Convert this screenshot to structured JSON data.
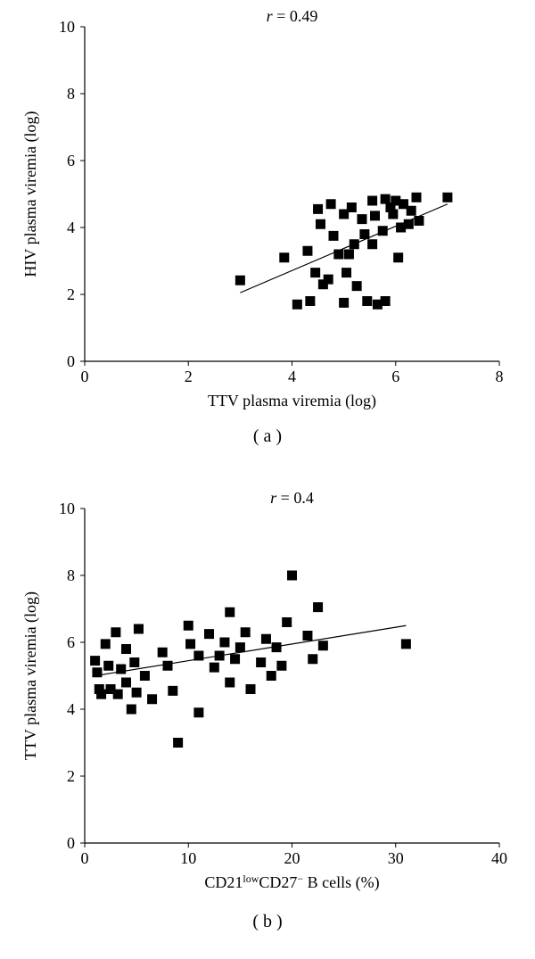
{
  "panelA": {
    "type": "scatter",
    "title_r": "r = 0.49",
    "xlabel": "TTV plasma viremia (log)",
    "ylabel": "HIV plasma viremia (log)",
    "panel_label": "( a )",
    "xlim": [
      0,
      8
    ],
    "ylim": [
      0,
      10
    ],
    "xtick_step": 2,
    "ytick_step": 2,
    "xticks": [
      0,
      2,
      4,
      6,
      8
    ],
    "yticks": [
      0,
      2,
      4,
      6,
      8,
      10
    ],
    "marker": "square",
    "marker_size": 11,
    "marker_color": "#000000",
    "line_color": "#000000",
    "line_width": 1.2,
    "background_color": "#ffffff",
    "axis_color": "#000000",
    "tick_len": 5,
    "tick_direction": "out",
    "fit_line": {
      "x1": 3.0,
      "y1": 2.05,
      "x2": 7.0,
      "y2": 4.7
    },
    "title_fontsize": 18,
    "label_fontsize": 18,
    "tick_fontsize": 18,
    "points": [
      {
        "x": 3.0,
        "y": 2.42
      },
      {
        "x": 3.85,
        "y": 3.1
      },
      {
        "x": 4.1,
        "y": 1.7
      },
      {
        "x": 4.3,
        "y": 3.3
      },
      {
        "x": 4.35,
        "y": 1.8
      },
      {
        "x": 4.45,
        "y": 2.65
      },
      {
        "x": 4.5,
        "y": 4.55
      },
      {
        "x": 4.55,
        "y": 4.1
      },
      {
        "x": 4.6,
        "y": 2.3
      },
      {
        "x": 4.7,
        "y": 2.45
      },
      {
        "x": 4.75,
        "y": 4.7
      },
      {
        "x": 4.8,
        "y": 3.75
      },
      {
        "x": 4.9,
        "y": 3.2
      },
      {
        "x": 5.0,
        "y": 1.75
      },
      {
        "x": 5.0,
        "y": 4.4
      },
      {
        "x": 5.05,
        "y": 2.65
      },
      {
        "x": 5.1,
        "y": 3.2
      },
      {
        "x": 5.15,
        "y": 4.6
      },
      {
        "x": 5.2,
        "y": 3.5
      },
      {
        "x": 5.25,
        "y": 2.25
      },
      {
        "x": 5.35,
        "y": 4.25
      },
      {
        "x": 5.4,
        "y": 3.8
      },
      {
        "x": 5.45,
        "y": 1.8
      },
      {
        "x": 5.55,
        "y": 4.8
      },
      {
        "x": 5.55,
        "y": 3.5
      },
      {
        "x": 5.6,
        "y": 4.35
      },
      {
        "x": 5.65,
        "y": 1.7
      },
      {
        "x": 5.75,
        "y": 3.9
      },
      {
        "x": 5.8,
        "y": 4.85
      },
      {
        "x": 5.8,
        "y": 1.8
      },
      {
        "x": 5.9,
        "y": 4.6
      },
      {
        "x": 5.95,
        "y": 4.4
      },
      {
        "x": 6.0,
        "y": 4.8
      },
      {
        "x": 6.05,
        "y": 3.1
      },
      {
        "x": 6.1,
        "y": 4.0
      },
      {
        "x": 6.15,
        "y": 4.7
      },
      {
        "x": 6.25,
        "y": 4.1
      },
      {
        "x": 6.3,
        "y": 4.5
      },
      {
        "x": 6.4,
        "y": 4.9
      },
      {
        "x": 6.45,
        "y": 4.2
      },
      {
        "x": 7.0,
        "y": 4.9
      }
    ]
  },
  "panelB": {
    "type": "scatter",
    "title_r": "r = 0.4",
    "xlabel_prefix": "CD21",
    "xlabel_super1": "low",
    "xlabel_mid": "CD27",
    "xlabel_super2": "−",
    "xlabel_suffix": " B cells (%)",
    "ylabel": "TTV plasma viremia (log)",
    "panel_label": "( b )",
    "xlim": [
      0,
      40
    ],
    "ylim": [
      0,
      10
    ],
    "xtick_step": 10,
    "ytick_step": 2,
    "xticks": [
      0,
      10,
      20,
      30,
      40
    ],
    "yticks": [
      0,
      2,
      4,
      6,
      8,
      10
    ],
    "marker": "square",
    "marker_size": 11,
    "marker_color": "#000000",
    "line_color": "#000000",
    "line_width": 1.2,
    "background_color": "#ffffff",
    "axis_color": "#000000",
    "tick_len": 5,
    "tick_direction": "out",
    "fit_line": {
      "x1": 1.0,
      "y1": 5.0,
      "x2": 31.0,
      "y2": 6.5
    },
    "title_fontsize": 18,
    "label_fontsize": 18,
    "tick_fontsize": 18,
    "points": [
      {
        "x": 1.0,
        "y": 5.45
      },
      {
        "x": 1.2,
        "y": 5.1
      },
      {
        "x": 1.4,
        "y": 4.6
      },
      {
        "x": 1.6,
        "y": 4.45
      },
      {
        "x": 2.0,
        "y": 5.95
      },
      {
        "x": 2.3,
        "y": 5.3
      },
      {
        "x": 2.5,
        "y": 4.6
      },
      {
        "x": 3.0,
        "y": 6.3
      },
      {
        "x": 3.2,
        "y": 4.45
      },
      {
        "x": 3.5,
        "y": 5.2
      },
      {
        "x": 4.0,
        "y": 4.8
      },
      {
        "x": 4.0,
        "y": 5.8
      },
      {
        "x": 4.5,
        "y": 4.0
      },
      {
        "x": 4.8,
        "y": 5.4
      },
      {
        "x": 5.0,
        "y": 4.5
      },
      {
        "x": 5.2,
        "y": 6.4
      },
      {
        "x": 5.8,
        "y": 5.0
      },
      {
        "x": 6.5,
        "y": 4.3
      },
      {
        "x": 7.5,
        "y": 5.7
      },
      {
        "x": 8.0,
        "y": 5.3
      },
      {
        "x": 8.5,
        "y": 4.55
      },
      {
        "x": 9.0,
        "y": 3.0
      },
      {
        "x": 10.0,
        "y": 6.5
      },
      {
        "x": 10.2,
        "y": 5.95
      },
      {
        "x": 11.0,
        "y": 5.6
      },
      {
        "x": 11.0,
        "y": 3.9
      },
      {
        "x": 12.0,
        "y": 6.25
      },
      {
        "x": 12.5,
        "y": 5.25
      },
      {
        "x": 13.0,
        "y": 5.6
      },
      {
        "x": 13.5,
        "y": 6.0
      },
      {
        "x": 14.0,
        "y": 4.8
      },
      {
        "x": 14.0,
        "y": 6.9
      },
      {
        "x": 14.5,
        "y": 5.5
      },
      {
        "x": 15.0,
        "y": 5.85
      },
      {
        "x": 15.5,
        "y": 6.3
      },
      {
        "x": 16.0,
        "y": 4.6
      },
      {
        "x": 17.0,
        "y": 5.4
      },
      {
        "x": 17.5,
        "y": 6.1
      },
      {
        "x": 18.0,
        "y": 5.0
      },
      {
        "x": 18.5,
        "y": 5.85
      },
      {
        "x": 19.0,
        "y": 5.3
      },
      {
        "x": 19.5,
        "y": 6.6
      },
      {
        "x": 20.0,
        "y": 8.0
      },
      {
        "x": 21.5,
        "y": 6.2
      },
      {
        "x": 22.0,
        "y": 5.5
      },
      {
        "x": 22.5,
        "y": 7.05
      },
      {
        "x": 23.0,
        "y": 5.9
      },
      {
        "x": 31.0,
        "y": 5.95
      }
    ]
  }
}
